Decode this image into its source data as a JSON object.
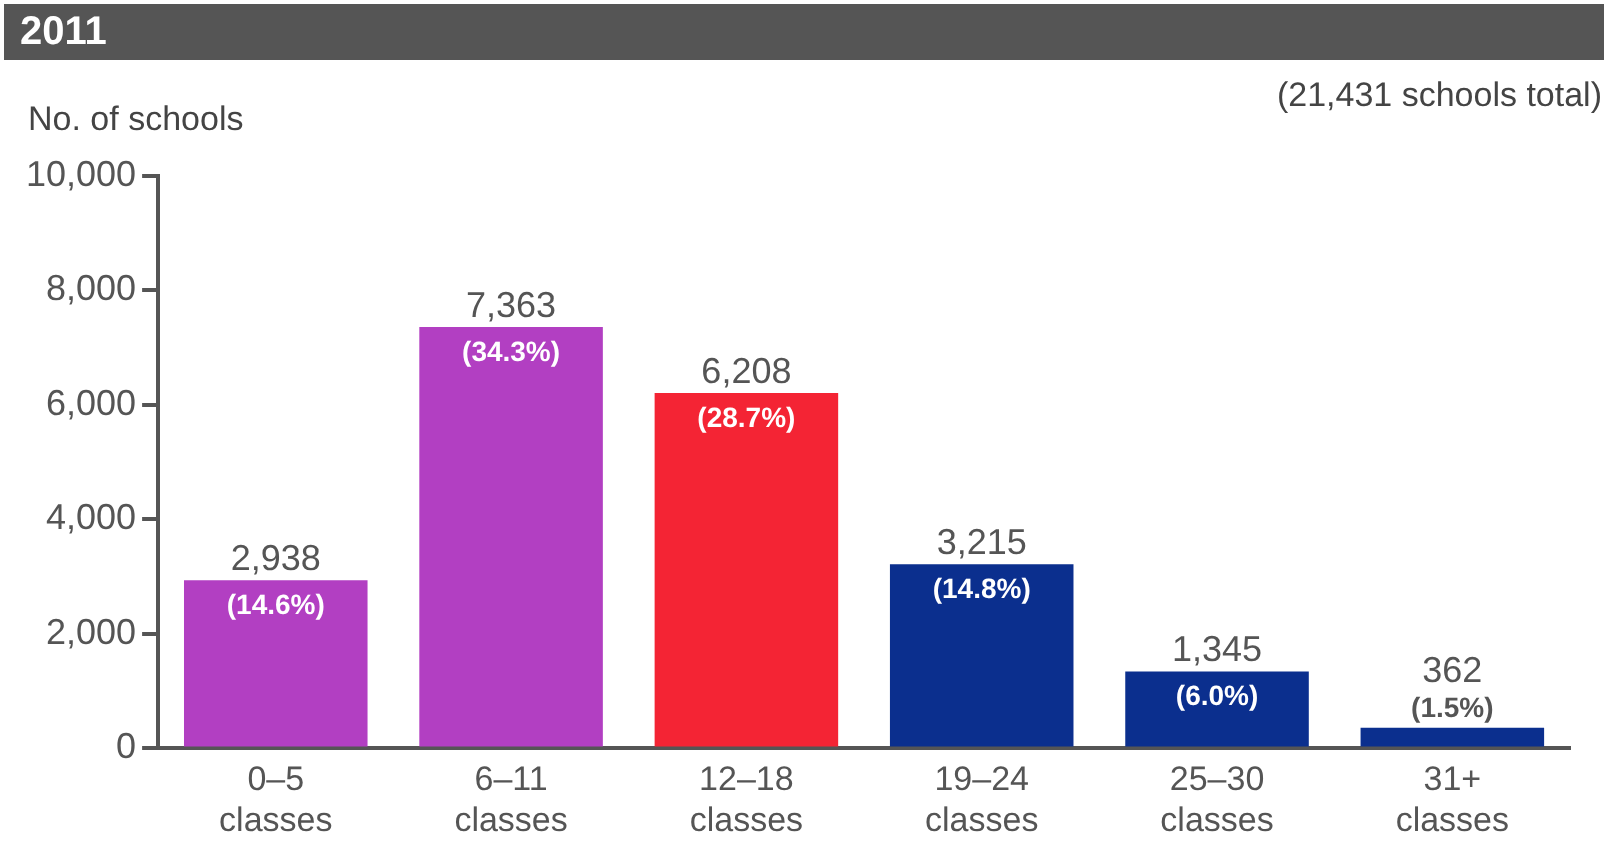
{
  "chart_data": {
    "type": "bar",
    "title": "2011",
    "ylabel": "No. of schools",
    "categories": [
      "0–5 classes",
      "6–11 classes",
      "12–18 classes",
      "19–24 classes",
      "25–30 classes",
      "31+ classes"
    ],
    "values": [
      2938,
      7363,
      6208,
      3215,
      1345,
      362
    ],
    "colors": [
      "#b23fc2",
      "#b23fc2",
      "#f42434",
      "#0b2f8e",
      "#0b2f8e",
      "#0b2f8e"
    ],
    "value_labels": [
      "2,938",
      "7,363",
      "6,208",
      "3,215",
      "1,345",
      "362"
    ],
    "ylim": [
      0,
      10000
    ],
    "yticks": [
      0,
      {
        "value": 2000,
        "label": "2,000"
      },
      {
        "value": 4000,
        "label": "4,000"
      },
      {
        "value": 6000,
        "label": "6,000"
      },
      {
        "value": 8000,
        "label": "8,000"
      },
      {
        "value": 10000,
        "label": "10,000"
      }
    ],
    "grid": false,
    "legend": false,
    "annotations": [
      "(21,431 schools total)",
      "(14.6%)",
      "(34.3%)",
      "(28.7%)",
      "(14.8%)",
      "(6.0%)",
      "(1.5%)"
    ]
  }
}
